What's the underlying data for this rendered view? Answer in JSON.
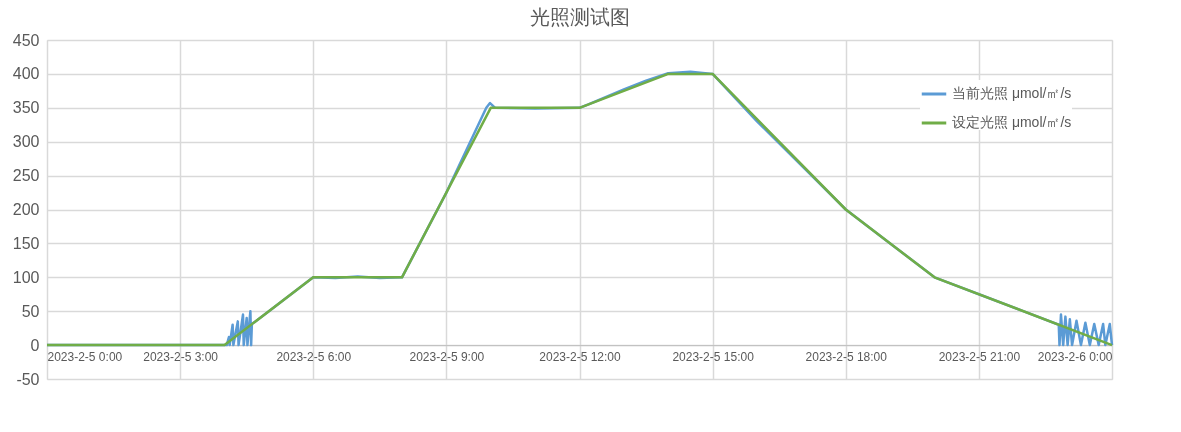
{
  "chart_data": {
    "type": "line",
    "title": "光照测试图",
    "xlim": [
      "2023-02-05T00:00",
      "2023-02-06T00:00"
    ],
    "xticks": [
      {
        "value": "2023-02-05T00:00",
        "label": "2023-2-5 0:00"
      },
      {
        "value": "2023-02-05T03:00",
        "label": "2023-2-5 3:00"
      },
      {
        "value": "2023-02-05T06:00",
        "label": "2023-2-5 6:00"
      },
      {
        "value": "2023-02-05T09:00",
        "label": "2023-2-5 9:00"
      },
      {
        "value": "2023-02-05T12:00",
        "label": "2023-2-5 12:00"
      },
      {
        "value": "2023-02-05T15:00",
        "label": "2023-2-5 15:00"
      },
      {
        "value": "2023-02-05T18:00",
        "label": "2023-2-5 18:00"
      },
      {
        "value": "2023-02-05T21:00",
        "label": "2023-2-5 21:00"
      },
      {
        "value": "2023-02-06T00:00",
        "label": "2023-2-6 0:00"
      }
    ],
    "ylim": [
      -50,
      450
    ],
    "yticks": [
      -50,
      0,
      50,
      100,
      150,
      200,
      250,
      300,
      350,
      400,
      450
    ],
    "grid": true,
    "legend": "top right",
    "marker": "none",
    "line_style": "solid",
    "series": [
      {
        "name": "当前光照 μmol/㎡/s",
        "color": "#5b9bd5",
        "x": [
          "2023-02-05T00:00",
          "2023-02-05T04:03",
          "2023-02-05T04:06",
          "2023-02-05T04:07",
          "2023-02-05T04:11",
          "2023-02-05T04:12",
          "2023-02-05T04:18",
          "2023-02-05T04:19",
          "2023-02-05T04:25",
          "2023-02-05T04:26",
          "2023-02-05T04:30",
          "2023-02-05T04:31",
          "2023-02-05T04:35",
          "2023-02-05T04:36",
          "2023-02-05T04:37",
          "2023-02-05T05:00",
          "2023-02-05T06:00",
          "2023-02-05T06:30",
          "2023-02-05T07:00",
          "2023-02-05T07:30",
          "2023-02-05T08:00",
          "2023-02-05T09:00",
          "2023-02-05T09:54",
          "2023-02-05T09:59",
          "2023-02-05T10:06",
          "2023-02-05T11:00",
          "2023-02-05T12:00",
          "2023-02-05T12:12",
          "2023-02-05T13:00",
          "2023-02-05T13:30",
          "2023-02-05T14:00",
          "2023-02-05T14:30",
          "2023-02-05T15:00",
          "2023-02-05T16:00",
          "2023-02-05T17:00",
          "2023-02-05T18:00",
          "2023-02-05T19:00",
          "2023-02-05T20:00",
          "2023-02-05T21:00",
          "2023-02-05T22:00",
          "2023-02-05T22:48",
          "2023-02-05T22:49",
          "2023-02-05T22:51",
          "2023-02-05T22:54",
          "2023-02-05T22:57",
          "2023-02-05T23:00",
          "2023-02-05T23:03",
          "2023-02-05T23:06",
          "2023-02-05T23:12",
          "2023-02-05T23:18",
          "2023-02-05T23:24",
          "2023-02-05T23:30",
          "2023-02-05T23:36",
          "2023-02-05T23:42",
          "2023-02-05T23:48",
          "2023-02-05T23:51",
          "2023-02-05T23:57",
          "2023-02-06T00:00"
        ],
        "values": [
          0,
          0,
          12,
          0,
          30,
          0,
          35,
          0,
          45,
          0,
          40,
          0,
          50,
          0,
          31,
          50,
          100,
          99,
          101,
          99,
          100,
          225,
          350,
          357,
          350,
          349,
          350,
          355,
          377,
          390,
          401,
          403,
          400,
          330,
          265,
          200,
          150,
          100,
          75,
          50,
          30,
          0,
          45,
          0,
          42,
          0,
          38,
          0,
          36,
          0,
          33,
          0,
          31,
          0,
          31,
          0,
          31,
          0
        ]
      },
      {
        "name": "设定光照 μmol/㎡/s",
        "color": "#70ad47",
        "x": [
          "2023-02-05T00:00",
          "2023-02-05T04:00",
          "2023-02-05T06:00",
          "2023-02-05T08:00",
          "2023-02-05T10:00",
          "2023-02-05T12:00",
          "2023-02-05T14:00",
          "2023-02-05T15:00",
          "2023-02-05T18:00",
          "2023-02-05T20:00",
          "2023-02-06T00:00"
        ],
        "values": [
          0,
          0,
          100,
          100,
          350,
          350,
          400,
          400,
          200,
          100,
          0
        ]
      }
    ]
  }
}
